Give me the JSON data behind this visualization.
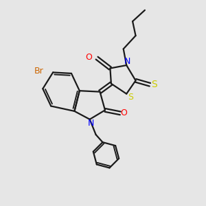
{
  "bg_color": "#e6e6e6",
  "bond_color": "#1a1a1a",
  "N_color": "#0000ff",
  "O_color": "#ff0000",
  "S_color": "#cccc00",
  "Br_color": "#cc6600",
  "lw": 1.6,
  "xlim": [
    0,
    10
  ],
  "ylim": [
    0,
    10
  ],
  "figsize": [
    3.0,
    3.0
  ],
  "dpi": 100
}
